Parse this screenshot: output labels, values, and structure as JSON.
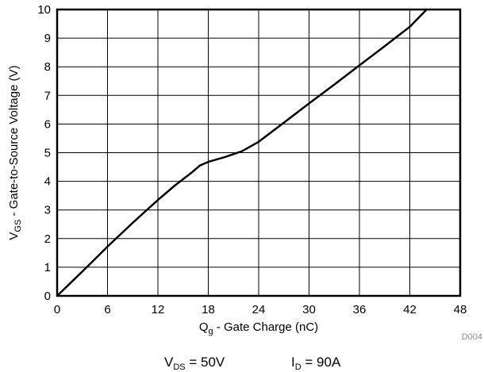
{
  "chart_data": {
    "type": "line",
    "xlabel": {
      "main": "Q",
      "sub": "g",
      "rest": " - Gate Charge (nC)"
    },
    "ylabel": {
      "main": "V",
      "sub": "GS",
      "rest": " - Gate-to-Source Voltage (V)"
    },
    "xlim": [
      0,
      48
    ],
    "ylim": [
      0,
      10
    ],
    "xticks": [
      0,
      6,
      12,
      18,
      24,
      30,
      36,
      42,
      48
    ],
    "yticks": [
      0,
      1,
      2,
      3,
      4,
      5,
      6,
      7,
      8,
      9,
      10
    ],
    "grid": true,
    "series": [
      {
        "x": [
          0,
          3,
          6,
          9,
          12,
          14,
          16,
          17,
          18,
          20,
          22,
          24,
          27,
          30,
          33,
          36,
          39,
          42,
          44
        ],
        "y": [
          0,
          0.85,
          1.72,
          2.55,
          3.35,
          3.85,
          4.3,
          4.55,
          4.68,
          4.85,
          5.05,
          5.38,
          6.05,
          6.72,
          7.38,
          8.05,
          8.72,
          9.4,
          10.0
        ]
      }
    ],
    "conditions": {
      "vds": {
        "main": "V",
        "sub": "DS",
        "rest": " = 50V"
      },
      "id": {
        "main": "I",
        "sub": "D",
        "rest": " = 90A"
      }
    },
    "figure_code": "D004"
  }
}
